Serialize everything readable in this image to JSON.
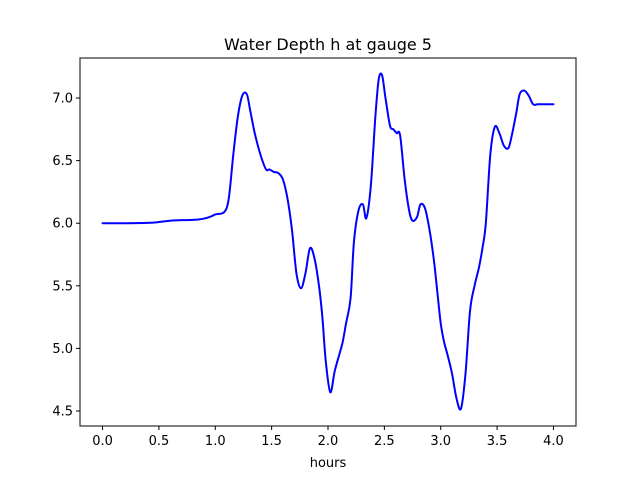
{
  "chart_data": {
    "type": "line",
    "title": "Water Depth h at gauge 5",
    "xlabel": "hours",
    "ylabel": "",
    "xlim": [
      -0.2,
      4.2
    ],
    "ylim": [
      4.38,
      7.32
    ],
    "x_ticks": [
      0.0,
      0.5,
      1.0,
      1.5,
      2.0,
      2.5,
      3.0,
      3.5,
      4.0
    ],
    "x_tick_labels": [
      "0.0",
      "0.5",
      "1.0",
      "1.5",
      "2.0",
      "2.5",
      "3.0",
      "3.5",
      "4.0"
    ],
    "y_ticks": [
      4.5,
      5.0,
      5.5,
      6.0,
      6.5,
      7.0
    ],
    "y_tick_labels": [
      "4.5",
      "5.0",
      "5.5",
      "6.0",
      "6.5",
      "7.0"
    ],
    "grid": false,
    "series": [
      {
        "color": "#0000ff",
        "x": [
          0.0,
          0.2,
          0.45,
          0.6,
          0.85,
          0.95,
          1.0,
          1.08,
          1.12,
          1.16,
          1.2,
          1.24,
          1.28,
          1.31,
          1.35,
          1.4,
          1.45,
          1.48,
          1.52,
          1.56,
          1.6,
          1.64,
          1.68,
          1.72,
          1.76,
          1.8,
          1.84,
          1.88,
          1.92,
          1.95,
          1.98,
          2.02,
          2.06,
          2.1,
          2.13,
          2.16,
          2.2,
          2.23,
          2.27,
          2.31,
          2.34,
          2.38,
          2.42,
          2.45,
          2.48,
          2.51,
          2.55,
          2.58,
          2.61,
          2.64,
          2.68,
          2.72,
          2.75,
          2.79,
          2.82,
          2.86,
          2.9,
          2.94,
          2.97,
          3.0,
          3.03,
          3.06,
          3.1,
          3.14,
          3.18,
          3.22,
          3.26,
          3.3,
          3.34,
          3.37,
          3.4,
          3.44,
          3.48,
          3.52,
          3.56,
          3.6,
          3.63,
          3.67,
          3.7,
          3.74,
          3.78,
          3.82,
          3.86,
          3.9,
          3.94,
          3.97,
          4.0
        ],
        "y": [
          6.0,
          6.0,
          6.005,
          6.02,
          6.03,
          6.05,
          6.07,
          6.09,
          6.2,
          6.55,
          6.85,
          7.02,
          7.03,
          6.9,
          6.72,
          6.55,
          6.43,
          6.43,
          6.41,
          6.4,
          6.35,
          6.2,
          5.95,
          5.6,
          5.48,
          5.6,
          5.8,
          5.72,
          5.5,
          5.25,
          4.9,
          4.65,
          4.82,
          4.95,
          5.05,
          5.2,
          5.4,
          5.85,
          6.1,
          6.15,
          6.04,
          6.3,
          6.85,
          7.15,
          7.18,
          7.0,
          6.78,
          6.75,
          6.72,
          6.7,
          6.35,
          6.1,
          6.02,
          6.05,
          6.15,
          6.12,
          5.95,
          5.7,
          5.45,
          5.2,
          5.05,
          4.95,
          4.8,
          4.6,
          4.52,
          4.8,
          5.3,
          5.5,
          5.65,
          5.8,
          6.0,
          6.55,
          6.77,
          6.72,
          6.62,
          6.6,
          6.7,
          6.88,
          7.03,
          7.06,
          7.02,
          6.95,
          6.95,
          6.95,
          6.95,
          6.95,
          6.95
        ]
      }
    ]
  }
}
